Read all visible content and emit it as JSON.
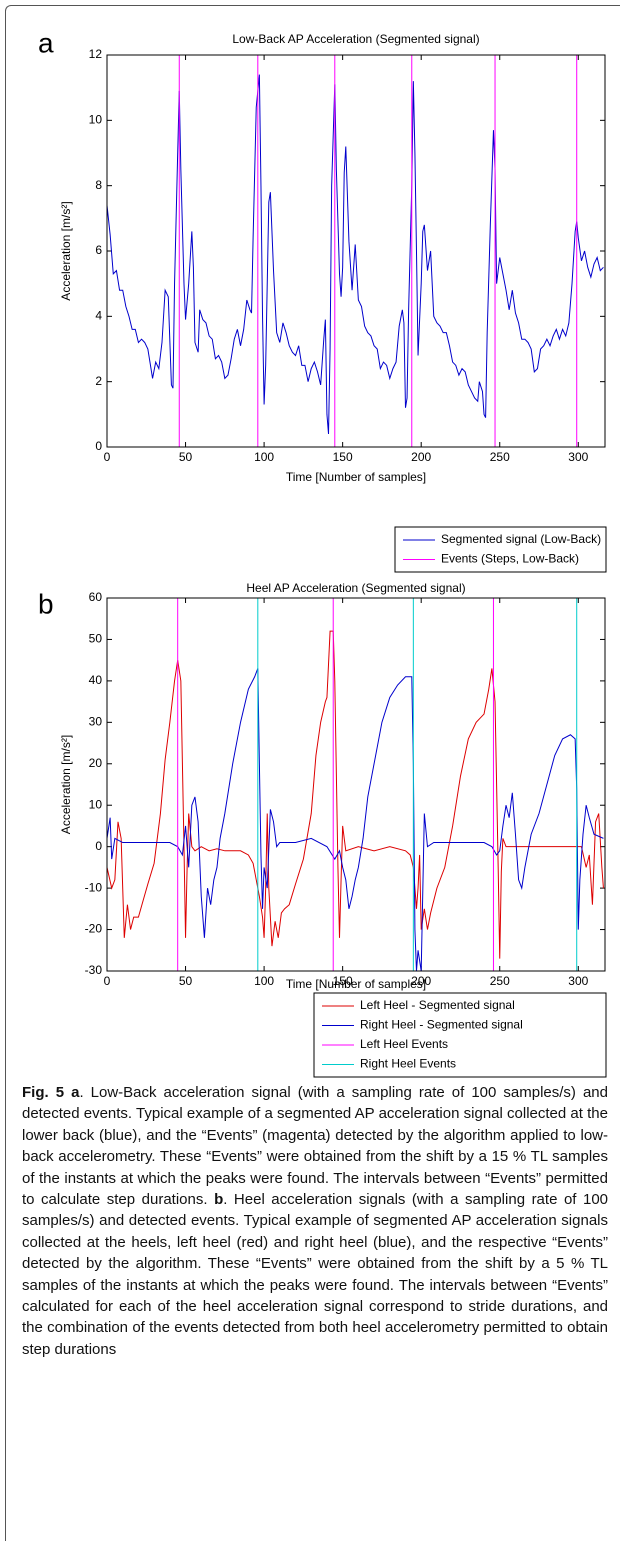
{
  "chart_data": [
    {
      "type": "line",
      "panel_label": "a",
      "title": "Low-Back AP Acceleration (Segmented signal)",
      "xlabel": "Time [Number of samples]",
      "ylabel": "Acceleration [m/s²]",
      "xlim": [
        0,
        317
      ],
      "xticks": [
        0,
        50,
        100,
        150,
        200,
        250,
        300
      ],
      "ylim": [
        0,
        12
      ],
      "yticks": [
        0,
        2,
        4,
        6,
        8,
        10,
        12
      ],
      "legend": "below right",
      "series": [
        {
          "name": "Segmented signal (Low-Back)",
          "color": "#0000cc",
          "x": [
            0,
            2,
            4,
            6,
            8,
            10,
            12,
            14,
            16,
            18,
            20,
            22,
            24,
            26,
            28,
            29,
            31,
            33,
            35,
            37,
            39,
            41,
            42,
            43,
            45,
            46,
            47,
            49,
            50,
            52,
            54,
            55,
            56,
            58,
            59,
            61,
            63,
            65,
            67,
            69,
            71,
            73,
            75,
            77,
            79,
            81,
            83,
            85,
            87,
            89,
            91,
            92,
            93,
            95,
            97,
            98,
            99,
            100,
            101,
            103,
            104,
            106,
            108,
            110,
            112,
            114,
            116,
            118,
            120,
            122,
            124,
            126,
            128,
            130,
            132,
            134,
            136,
            138,
            139,
            140,
            141,
            142,
            143,
            145,
            146,
            148,
            149,
            150,
            151,
            152,
            154,
            156,
            158,
            160,
            162,
            164,
            166,
            168,
            170,
            172,
            174,
            176,
            178,
            180,
            182,
            184,
            186,
            188,
            189,
            190,
            191,
            192,
            194,
            195,
            196,
            197,
            198,
            200,
            201,
            202,
            204,
            206,
            208,
            210,
            212,
            214,
            216,
            218,
            220,
            222,
            224,
            226,
            228,
            230,
            232,
            234,
            236,
            237,
            239,
            240,
            241,
            242,
            244,
            246,
            247,
            248,
            250,
            252,
            254,
            256,
            258,
            260,
            262,
            264,
            266,
            268,
            270,
            272,
            274,
            276,
            278,
            280,
            282,
            284,
            286,
            288,
            290,
            292,
            294,
            296,
            298,
            299,
            300,
            302,
            304,
            306,
            308,
            310,
            312,
            314,
            316
          ],
          "values": [
            7.4,
            6.5,
            5.3,
            5.4,
            4.8,
            4.8,
            4.3,
            4.0,
            3.6,
            3.6,
            3.2,
            3.3,
            3.2,
            3.0,
            2.4,
            2.1,
            2.6,
            2.4,
            3.2,
            4.8,
            4.6,
            1.9,
            1.8,
            5.0,
            9.0,
            10.9,
            8.5,
            5.0,
            3.9,
            5.0,
            6.6,
            5.5,
            3.2,
            2.9,
            4.2,
            3.9,
            3.8,
            3.4,
            3.3,
            2.7,
            2.8,
            2.6,
            2.1,
            2.2,
            2.7,
            3.3,
            3.6,
            3.1,
            3.6,
            4.5,
            4.2,
            4.1,
            6.4,
            10.4,
            11.4,
            8.0,
            4.0,
            1.3,
            2.5,
            7.5,
            7.8,
            5.4,
            3.5,
            3.2,
            3.8,
            3.5,
            3.1,
            2.9,
            2.8,
            3.1,
            2.5,
            2.5,
            2.0,
            2.4,
            2.6,
            2.3,
            1.9,
            3.3,
            3.9,
            1.0,
            0.4,
            3.0,
            8.0,
            11.1,
            8.5,
            5.3,
            4.6,
            5.5,
            8.4,
            9.2,
            6.3,
            4.8,
            6.2,
            4.5,
            4.3,
            3.7,
            3.5,
            3.4,
            3.1,
            3.0,
            2.4,
            2.6,
            2.5,
            2.1,
            2.4,
            2.6,
            3.7,
            4.2,
            3.8,
            1.2,
            1.5,
            4.2,
            8.0,
            11.2,
            9.0,
            6.0,
            2.8,
            5.0,
            6.6,
            6.8,
            5.4,
            6.0,
            4.0,
            3.8,
            3.7,
            3.5,
            3.5,
            3.1,
            2.6,
            2.5,
            2.2,
            2.4,
            2.3,
            1.9,
            1.7,
            1.5,
            1.4,
            2.0,
            1.7,
            1.0,
            0.9,
            3.5,
            6.8,
            9.7,
            8.5,
            5.0,
            5.8,
            5.3,
            4.8,
            4.2,
            4.8,
            4.1,
            3.8,
            3.3,
            3.3,
            3.2,
            3.0,
            2.3,
            2.4,
            3.0,
            3.1,
            3.3,
            3.1,
            3.4,
            3.6,
            3.3,
            3.6,
            3.4,
            3.8,
            5.0,
            6.6,
            6.9,
            6.4,
            5.7,
            6.0,
            5.5,
            5.2,
            5.6,
            5.8,
            5.4,
            5.5
          ]
        }
      ],
      "events": [
        {
          "name": "Events (Steps, Low-Back)",
          "color": "#ff00ff",
          "x": [
            46,
            96,
            145,
            194,
            247,
            299
          ]
        }
      ]
    },
    {
      "type": "line",
      "panel_label": "b",
      "title": "Heel AP Acceleration (Segmented signal)",
      "xlabel": "Time [Number of samples]",
      "ylabel": "Acceleration [m/s²]",
      "xlim": [
        0,
        317
      ],
      "xticks": [
        0,
        50,
        100,
        150,
        200,
        250,
        300
      ],
      "ylim": [
        -30,
        60
      ],
      "yticks": [
        -30,
        -20,
        -10,
        0,
        10,
        20,
        30,
        40,
        50,
        60
      ],
      "legend": "below right",
      "series": [
        {
          "name": "Left Heel - Segmented signal",
          "color": "#dd0000",
          "x": [
            0,
            3,
            5,
            7,
            9,
            11,
            13,
            15,
            17,
            20,
            23,
            26,
            30,
            34,
            37,
            40,
            43,
            45,
            47,
            49,
            50,
            51,
            52,
            54,
            56,
            60,
            65,
            70,
            75,
            80,
            85,
            90,
            93,
            95,
            97,
            99,
            100,
            101,
            102,
            103,
            105,
            107,
            109,
            111,
            113,
            116,
            120,
            125,
            130,
            133,
            136,
            139,
            140,
            142,
            144,
            145,
            147,
            148,
            149,
            150,
            152,
            160,
            170,
            180,
            190,
            193,
            195,
            197,
            198,
            199,
            200,
            202,
            204,
            206,
            210,
            215,
            220,
            225,
            230,
            235,
            240,
            243,
            245,
            247,
            249,
            250,
            251,
            252,
            254,
            260,
            270,
            280,
            290,
            298,
            302,
            305,
            307,
            309,
            311,
            313,
            315,
            316
          ],
          "values": [
            -5,
            -10,
            -8,
            6,
            2,
            -22,
            -14,
            -20,
            -17,
            -17,
            -13,
            -9,
            -4,
            8,
            21,
            30,
            40,
            45,
            40,
            0,
            -22,
            -5,
            8,
            0,
            -1,
            0,
            -1,
            -0.5,
            -1,
            -1,
            -1,
            -2,
            -4,
            -8,
            -12,
            -17,
            -22,
            -10,
            8,
            -10,
            -24,
            -18,
            -22,
            -16,
            -15,
            -14,
            -9,
            -3,
            8,
            22,
            30,
            35,
            36,
            52,
            52,
            40,
            -5,
            -22,
            -8,
            5,
            -1,
            0,
            -1,
            0,
            -1,
            -2,
            -5,
            -15,
            -10,
            -2,
            -20,
            -15,
            -20,
            -16,
            -10,
            -5,
            5,
            17,
            26,
            30,
            32,
            38,
            43,
            35,
            -5,
            -27,
            -6,
            2,
            0,
            0,
            0,
            0,
            0,
            0,
            0,
            -5,
            -2,
            -14,
            6,
            8,
            -5,
            -10
          ]
        },
        {
          "name": "Right Heel - Segmented signal",
          "color": "#0000cc",
          "x": [
            0,
            2,
            3,
            5,
            10,
            20,
            30,
            40,
            45,
            48,
            50,
            52,
            54,
            56,
            58,
            60,
            62,
            64,
            66,
            68,
            70,
            72,
            75,
            80,
            85,
            90,
            94,
            96,
            97,
            98,
            99,
            100,
            102,
            104,
            106,
            108,
            110,
            120,
            130,
            140,
            145,
            148,
            150,
            152,
            154,
            156,
            158,
            160,
            163,
            166,
            170,
            175,
            180,
            185,
            190,
            194,
            195,
            196,
            197,
            198,
            200,
            202,
            204,
            208,
            220,
            230,
            240,
            245,
            248,
            250,
            252,
            254,
            256,
            258,
            260,
            262,
            264,
            266,
            270,
            275,
            280,
            285,
            290,
            295,
            298,
            299,
            300,
            301,
            303,
            305,
            307,
            310,
            316
          ],
          "values": [
            2,
            7,
            -3,
            2,
            1,
            1,
            1,
            1,
            0,
            -2,
            5,
            -5,
            10,
            12,
            6,
            -12,
            -22,
            -10,
            -14,
            -8,
            -5,
            2,
            8,
            20,
            30,
            38,
            41,
            43,
            20,
            -2,
            -15,
            -5,
            -10,
            9,
            6,
            0,
            1,
            1,
            2,
            0,
            -3,
            -1,
            -5,
            -8,
            -15,
            -12,
            -8,
            -5,
            2,
            12,
            20,
            30,
            36,
            39,
            41,
            41,
            20,
            -20,
            -30,
            -25,
            -30,
            8,
            0,
            1,
            1,
            1,
            1,
            0,
            -2,
            -1,
            5,
            10,
            7,
            13,
            3,
            -8,
            -10,
            -5,
            3,
            8,
            15,
            22,
            26,
            27,
            26,
            14,
            -20,
            -8,
            3,
            10,
            7,
            3,
            2
          ]
        }
      ],
      "events": [
        {
          "name": "Left Heel Events",
          "color": "#ff00ff",
          "x": [
            45,
            144,
            246
          ]
        },
        {
          "name": "Right Heel Events",
          "color": "#00cccc",
          "x": [
            96,
            195,
            299
          ]
        }
      ]
    }
  ],
  "caption": {
    "label": "Fig. 5",
    "panels": [
      {
        "label": "a",
        "text": ". Low-Back acceleration signal (with a sampling rate of 100 samples/s) and detected events. Typical example of a segmented AP acceleration signal collected at the lower back (blue), and the “Events” (magenta) detected by the algorithm applied to low-back accelerometry. These “Events” were obtained from the shift by a 15 % TL samples of the instants at which the peaks were found. The intervals between “Events” permitted to calculate step durations. "
      },
      {
        "label": "b",
        "text": ". Heel acceleration signals (with a sampling rate of 100 samples/s) and detected events. Typical example of segmented AP acceleration signals collected at the heels, left heel (red) and right heel (blue), and the respective “Events” detected by the algorithm. These “Events” were obtained from the shift by a 5 % TL samples of the instants at which the peaks were found. The intervals between “Events” calculated for each of the heel acceleration signal correspond to stride durations, and the combination of the events detected from both heel accelerometry permitted to obtain step durations"
      }
    ]
  }
}
